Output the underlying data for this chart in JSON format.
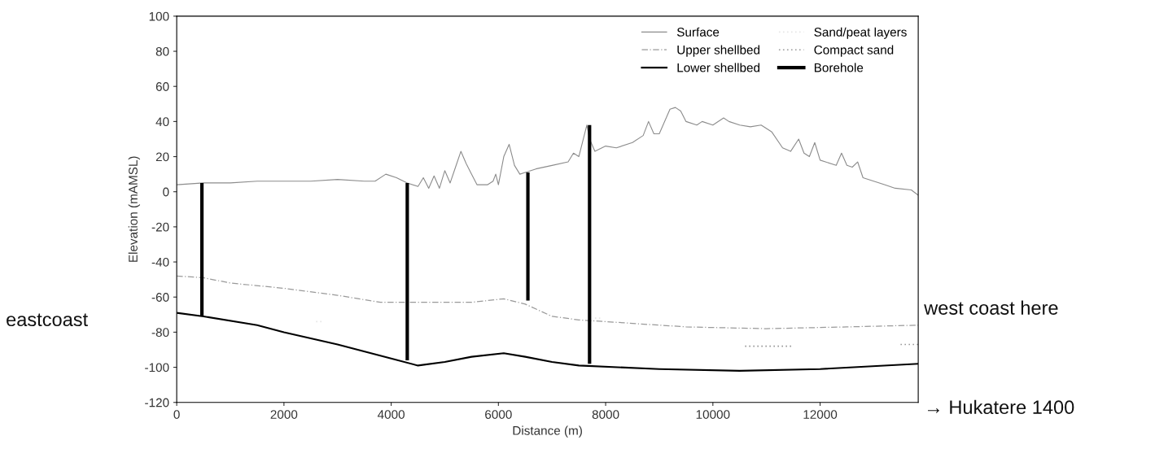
{
  "chart_data": {
    "type": "line",
    "xlabel": "Distance (m)",
    "ylabel": "Elevation (mAMSL)",
    "xlim": [
      0,
      13830
    ],
    "xticks": [
      0,
      2000,
      4000,
      6000,
      8000,
      10000,
      12000
    ],
    "ylim": [
      -120,
      100
    ],
    "yticks": [
      -120,
      -100,
      -80,
      -60,
      -40,
      -20,
      0,
      20,
      40,
      60,
      80,
      100
    ],
    "grid": false,
    "legend": "top right",
    "marker": "none",
    "annotations": [
      "eastcoast",
      "west coast here",
      "→ Hukatere 1400"
    ],
    "series": [
      {
        "name": "Surface",
        "color": "#8c8c8c",
        "line_style": "solid",
        "x": [
          0,
          500,
          1000,
          1500,
          2000,
          2500,
          3000,
          3500,
          3700,
          3900,
          4100,
          4300,
          4500,
          4600,
          4700,
          4800,
          4900,
          5000,
          5100,
          5200,
          5300,
          5400,
          5500,
          5600,
          5800,
          5900,
          5950,
          6000,
          6100,
          6200,
          6300,
          6400,
          6500,
          6700,
          7000,
          7300,
          7400,
          7500,
          7650,
          7700,
          7800,
          8000,
          8200,
          8500,
          8700,
          8800,
          8900,
          9000,
          9200,
          9300,
          9400,
          9500,
          9700,
          9800,
          10000,
          10200,
          10300,
          10500,
          10700,
          10900,
          11100,
          11300,
          11450,
          11600,
          11700,
          11800,
          11900,
          12000,
          12100,
          12300,
          12400,
          12500,
          12600,
          12700,
          12800,
          13000,
          13200,
          13400,
          13700,
          13830
        ],
        "values": [
          4,
          5,
          5,
          6,
          6,
          6,
          7,
          6,
          6,
          10,
          8,
          5,
          3,
          8,
          2,
          9,
          2,
          12,
          5,
          14,
          23,
          16,
          10,
          4,
          4,
          6,
          10,
          4,
          20,
          27,
          15,
          10,
          11,
          13,
          15,
          17,
          22,
          20,
          38,
          30,
          23,
          26,
          25,
          28,
          32,
          40,
          33,
          33,
          47,
          48,
          46,
          40,
          38,
          40,
          38,
          42,
          40,
          38,
          37,
          38,
          34,
          25,
          23,
          30,
          22,
          20,
          28,
          18,
          17,
          15,
          22,
          15,
          14,
          17,
          8,
          6,
          4,
          2,
          1,
          -2
        ]
      },
      {
        "name": "Upper shellbed",
        "color": "#9a9a9a",
        "line_style": "dashed",
        "x": [
          0,
          500,
          1000,
          2000,
          3000,
          3800,
          4500,
          5500,
          6100,
          6500,
          7000,
          7500,
          8500,
          9500,
          11000,
          12500,
          13830
        ],
        "values": [
          -48,
          -49,
          -52,
          -55,
          -59,
          -63,
          -63,
          -63,
          -61,
          -64,
          -71,
          -73,
          -75,
          -77,
          -78,
          -77,
          -76
        ]
      },
      {
        "name": "Lower shellbed",
        "color": "#000000",
        "line_style": "solid",
        "x": [
          0,
          500,
          1500,
          2000,
          3000,
          4000,
          4500,
          5000,
          5500,
          6100,
          6500,
          7000,
          7500,
          9000,
          10500,
          12000,
          13830
        ],
        "values": [
          -69,
          -71,
          -76,
          -80,
          -87,
          -95,
          -99,
          -97,
          -94,
          -92,
          -94,
          -97,
          -99,
          -101,
          -102,
          -101,
          -98
        ]
      },
      {
        "name": "Sand/peat layers",
        "color": "#e6e6e6",
        "line_style": "dotted",
        "x": [
          2600,
          2700,
          null,
          7800,
          7900
        ],
        "values": [
          -74,
          -74,
          null,
          -72,
          -72
        ]
      },
      {
        "name": "Compact sand",
        "color": "#9a9a9a",
        "line_style": "dotted",
        "x": [
          10600,
          11500,
          null,
          13500,
          13830
        ],
        "values": [
          -88,
          -88,
          null,
          -87,
          -87
        ]
      },
      {
        "name": "Borehole",
        "color": "#000000",
        "line_style": "solid",
        "x": [
          470,
          470,
          null,
          4300,
          4300,
          null,
          6550,
          6550,
          null,
          7700,
          7700
        ],
        "values": [
          5,
          -71,
          null,
          5,
          -96,
          null,
          11,
          -62,
          null,
          38,
          -98
        ]
      }
    ]
  }
}
